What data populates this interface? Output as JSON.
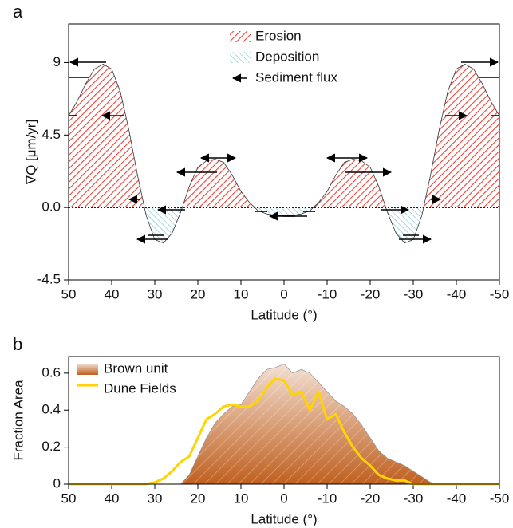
{
  "chart_data": [
    {
      "type": "area",
      "label": "a",
      "ylabel": "∇Q [μm/yr]",
      "xlabel": "Latitude (°)",
      "x": [
        50,
        48,
        46,
        44,
        42,
        40,
        38,
        36,
        34,
        32,
        30,
        28,
        26,
        24,
        22,
        20,
        18,
        16,
        14,
        12,
        10,
        8,
        6,
        4,
        2,
        0,
        -2,
        -4,
        -6,
        -8,
        -10,
        -12,
        -14,
        -16,
        -18,
        -20,
        -22,
        -24,
        -26,
        -28,
        -30,
        -32,
        -34,
        -36,
        -38,
        -40,
        -42,
        -44,
        -46,
        -48,
        -50
      ],
      "values": [
        5.7,
        6.6,
        7.7,
        8.6,
        8.9,
        8.6,
        7.2,
        4.8,
        2.0,
        -0.5,
        -2.0,
        -2.2,
        -1.6,
        -0.3,
        1.3,
        2.5,
        2.9,
        3.0,
        2.8,
        2.0,
        1.0,
        0.3,
        -0.2,
        -0.4,
        -0.5,
        -0.5,
        -0.5,
        -0.4,
        -0.2,
        0.3,
        1.0,
        2.0,
        2.8,
        3.0,
        2.9,
        2.5,
        1.3,
        -0.3,
        -1.6,
        -2.2,
        -2.0,
        -0.5,
        2.0,
        4.8,
        7.2,
        8.6,
        8.9,
        8.6,
        7.7,
        6.6,
        5.7
      ],
      "xlim": [
        50,
        -50
      ],
      "xticks": [
        50,
        40,
        30,
        20,
        10,
        0,
        -10,
        -20,
        -30,
        -40,
        -50
      ],
      "ylim": [
        -4.5,
        11.4
      ],
      "yticks": [
        -4.5,
        {
          "value": 0,
          "label": "0.0"
        },
        4.5,
        9
      ],
      "zero_line": true,
      "legend": [
        {
          "label": "Erosion",
          "color": "#e8433a"
        },
        {
          "label": "Deposition",
          "color": "#5bb8cc"
        },
        {
          "label": "Sediment flux"
        }
      ]
    },
    {
      "type": "line",
      "label": "b",
      "ylabel": "Fraction Area",
      "xlabel": "Latitude (°)",
      "x": [
        50,
        48,
        46,
        44,
        42,
        40,
        38,
        36,
        34,
        32,
        30,
        28,
        26,
        24,
        22,
        20,
        18,
        16,
        14,
        12,
        10,
        8,
        6,
        4,
        2,
        0,
        -2,
        -4,
        -6,
        -8,
        -10,
        -12,
        -14,
        -16,
        -18,
        -20,
        -22,
        -24,
        -26,
        -28,
        -30,
        -32,
        -34,
        -36,
        -38,
        -40,
        -42,
        -44,
        -46,
        -48,
        -50
      ],
      "series": [
        {
          "name": "Brown unit",
          "color": "#c0601f",
          "fill": true,
          "values": [
            0,
            0,
            0,
            0,
            0,
            0,
            0,
            0,
            0,
            0,
            0,
            0,
            0,
            0,
            0.05,
            0.15,
            0.25,
            0.33,
            0.38,
            0.42,
            0.43,
            0.5,
            0.57,
            0.62,
            0.63,
            0.65,
            0.6,
            0.62,
            0.6,
            0.55,
            0.5,
            0.45,
            0.42,
            0.38,
            0.32,
            0.25,
            0.18,
            0.14,
            0.12,
            0.1,
            0.07,
            0.04,
            0.01,
            0,
            0,
            0,
            0,
            0,
            0,
            0,
            0
          ]
        },
        {
          "name": "Dune Fields",
          "color": "#ffd400",
          "fill": false,
          "values": [
            0,
            0,
            0,
            0,
            0,
            0,
            0,
            0,
            0,
            0,
            0.01,
            0.03,
            0.07,
            0.12,
            0.15,
            0.25,
            0.35,
            0.38,
            0.42,
            0.43,
            0.42,
            0.42,
            0.45,
            0.52,
            0.57,
            0.56,
            0.48,
            0.5,
            0.4,
            0.5,
            0.35,
            0.38,
            0.28,
            0.2,
            0.14,
            0.1,
            0.05,
            0.03,
            0.02,
            0.02,
            0,
            0,
            0,
            0,
            0,
            0,
            0,
            0,
            0,
            0,
            0
          ]
        }
      ],
      "xlim": [
        50,
        -50
      ],
      "xticks": [
        50,
        40,
        30,
        20,
        10,
        0,
        -10,
        -20,
        -30,
        -40,
        -50
      ],
      "ylim": [
        0,
        0.69
      ],
      "yticks": [
        0,
        0.2,
        0.4,
        0.6
      ]
    }
  ]
}
